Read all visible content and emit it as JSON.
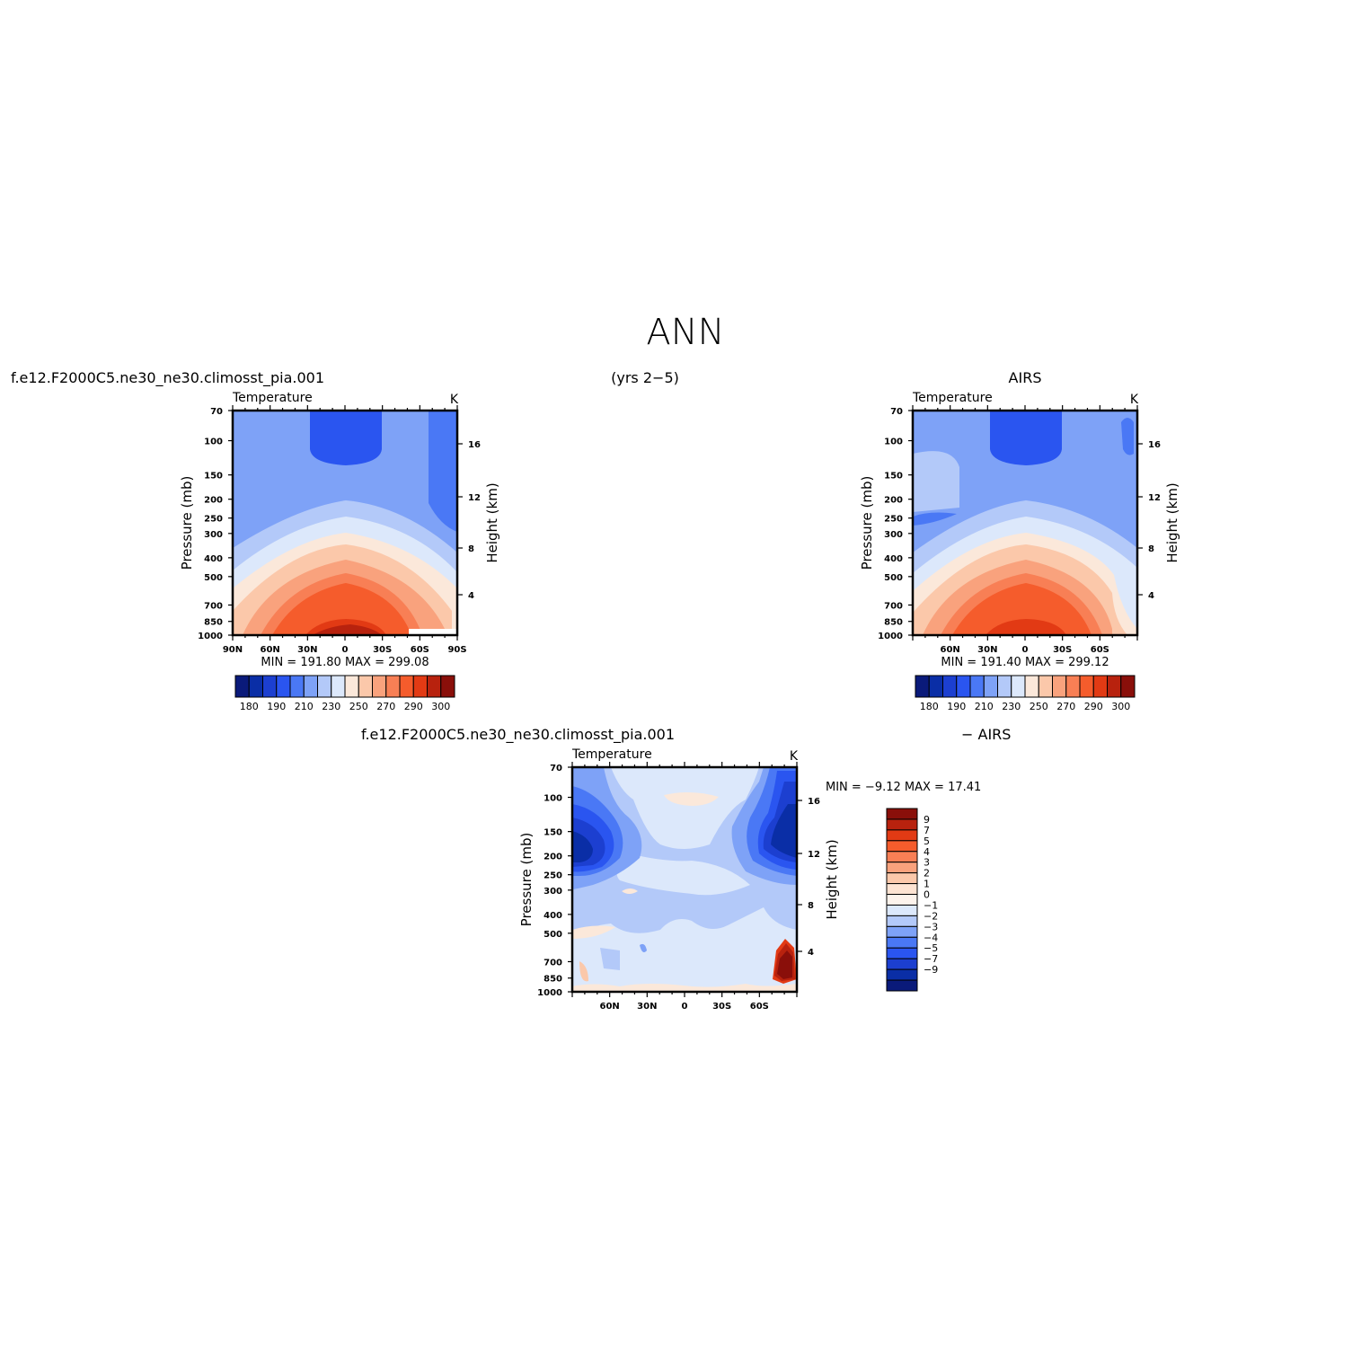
{
  "title": "ANN",
  "top_left_label": "f.e12.F2000C5.ne30_ne30.climosst_pia.001",
  "top_center_label": "(yrs 2−5)",
  "top_right_label": "AIRS",
  "bottom_left_label": "f.e12.F2000C5.ne30_ne30.climosst_pia.001",
  "bottom_right_label": "− AIRS",
  "chart_data": [
    {
      "type": "heatmap",
      "title": "Temperature",
      "units": "K",
      "ylabel": "Pressure (mb)",
      "y2label": "Height (km)",
      "x_ticks": [
        "90N",
        "60N",
        "30N",
        "0",
        "30S",
        "60S",
        "90S"
      ],
      "p_ticks": [
        70,
        100,
        150,
        200,
        250,
        300,
        400,
        500,
        700,
        850,
        1000
      ],
      "h_ticks": [
        16,
        12,
        8,
        4
      ],
      "stats": "MIN =  191.80   MAX =  299.08",
      "colorbar": {
        "colors": [
          "#0a1a7a",
          "#0a2ea6",
          "#1c3fd0",
          "#2a55f0",
          "#4a78f5",
          "#7ea2f7",
          "#b3c9f9",
          "#dce8fb",
          "#fbe8da",
          "#fbc8aa",
          "#f9a27d",
          "#f87f55",
          "#f55c2c",
          "#e23a14",
          "#b8220e",
          "#8a0f0a"
        ],
        "labels": [
          "180",
          "190",
          "210",
          "230",
          "250",
          "270",
          "290",
          "300"
        ]
      }
    },
    {
      "type": "heatmap",
      "title": "Temperature",
      "units": "K",
      "ylabel": "Pressure (mb)",
      "y2label": "Height (km)",
      "x_ticks": [
        "60N",
        "30N",
        "0",
        "30S",
        "60S"
      ],
      "p_ticks": [
        70,
        100,
        150,
        200,
        250,
        300,
        400,
        500,
        700,
        850,
        1000
      ],
      "h_ticks": [
        16,
        12,
        8,
        4
      ],
      "stats": "MIN =  191.40   MAX =  299.12",
      "colorbar": {
        "colors": [
          "#0a1a7a",
          "#0a2ea6",
          "#1c3fd0",
          "#2a55f0",
          "#4a78f5",
          "#7ea2f7",
          "#b3c9f9",
          "#dce8fb",
          "#fbe8da",
          "#fbc8aa",
          "#f9a27d",
          "#f87f55",
          "#f55c2c",
          "#e23a14",
          "#b8220e",
          "#8a0f0a"
        ],
        "labels": [
          "180",
          "190",
          "210",
          "230",
          "250",
          "270",
          "290",
          "300"
        ]
      }
    },
    {
      "type": "heatmap",
      "title": "Temperature",
      "units": "K",
      "ylabel": "Pressure (mb)",
      "y2label": "Height (km)",
      "x_ticks": [
        "60N",
        "30N",
        "0",
        "30S",
        "60S"
      ],
      "p_ticks": [
        70,
        100,
        150,
        200,
        250,
        300,
        400,
        500,
        700,
        850,
        1000
      ],
      "h_ticks": [
        16,
        12,
        8,
        4
      ],
      "stats": "MIN =   −9.12   MAX =   17.41",
      "colorbar": {
        "colors": [
          "#8a0f0a",
          "#b8220e",
          "#e23a14",
          "#f55c2c",
          "#f87f55",
          "#f9a27d",
          "#fbc8aa",
          "#fde3d2",
          "#fdf3ec",
          "#dce8fb",
          "#b3c9f9",
          "#7ea2f7",
          "#4a78f5",
          "#2a55f0",
          "#1c3fd0",
          "#0a2ea6",
          "#0a1a7a"
        ],
        "labels": [
          "9",
          "7",
          "5",
          "4",
          "3",
          "2",
          "1",
          "0",
          "−1",
          "−2",
          "−3",
          "−4",
          "−5",
          "−7",
          "−9"
        ]
      }
    }
  ]
}
